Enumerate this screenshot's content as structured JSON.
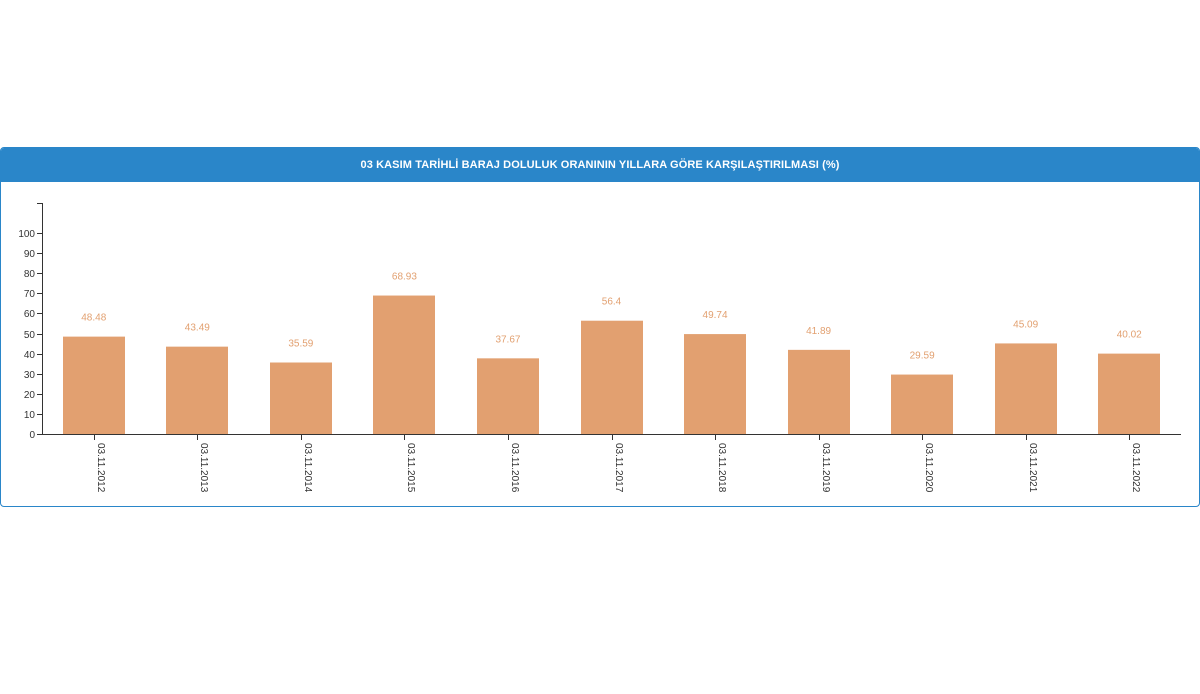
{
  "panel": {
    "title": "03 KASIM TARİHLİ BARAJ DOLULUK ORANININ YILLARA GÖRE KARŞILAŞTIRILMASI (%)"
  },
  "colors": {
    "header": "#2a86c9",
    "bar": "#e2a070",
    "axis": "#333333"
  },
  "chart_data": {
    "type": "bar",
    "title": "03 KASIM TARİHLİ BARAJ DOLULUK ORANININ YILLARA GÖRE KARŞILAŞTIRILMASI (%)",
    "categories": [
      "03.11.2012",
      "03.11.2013",
      "03.11.2014",
      "03.11.2015",
      "03.11.2016",
      "03.11.2017",
      "03.11.2018",
      "03.11.2019",
      "03.11.2020",
      "03.11.2021",
      "03.11.2022"
    ],
    "values": [
      48.48,
      43.49,
      35.59,
      68.93,
      37.67,
      56.4,
      49.74,
      41.89,
      29.59,
      45.09,
      40.02
    ],
    "value_labels": [
      "48.48",
      "43.49",
      "35.59",
      "68.93",
      "37.67",
      "56.4",
      "49.74",
      "41.89",
      "29.59",
      "45.09",
      "40.02"
    ],
    "yticks": [
      0,
      10,
      20,
      30,
      40,
      50,
      60,
      70,
      80,
      90,
      100
    ],
    "ylim": [
      0,
      115
    ],
    "grid": false,
    "xlabel": "",
    "ylabel": ""
  }
}
